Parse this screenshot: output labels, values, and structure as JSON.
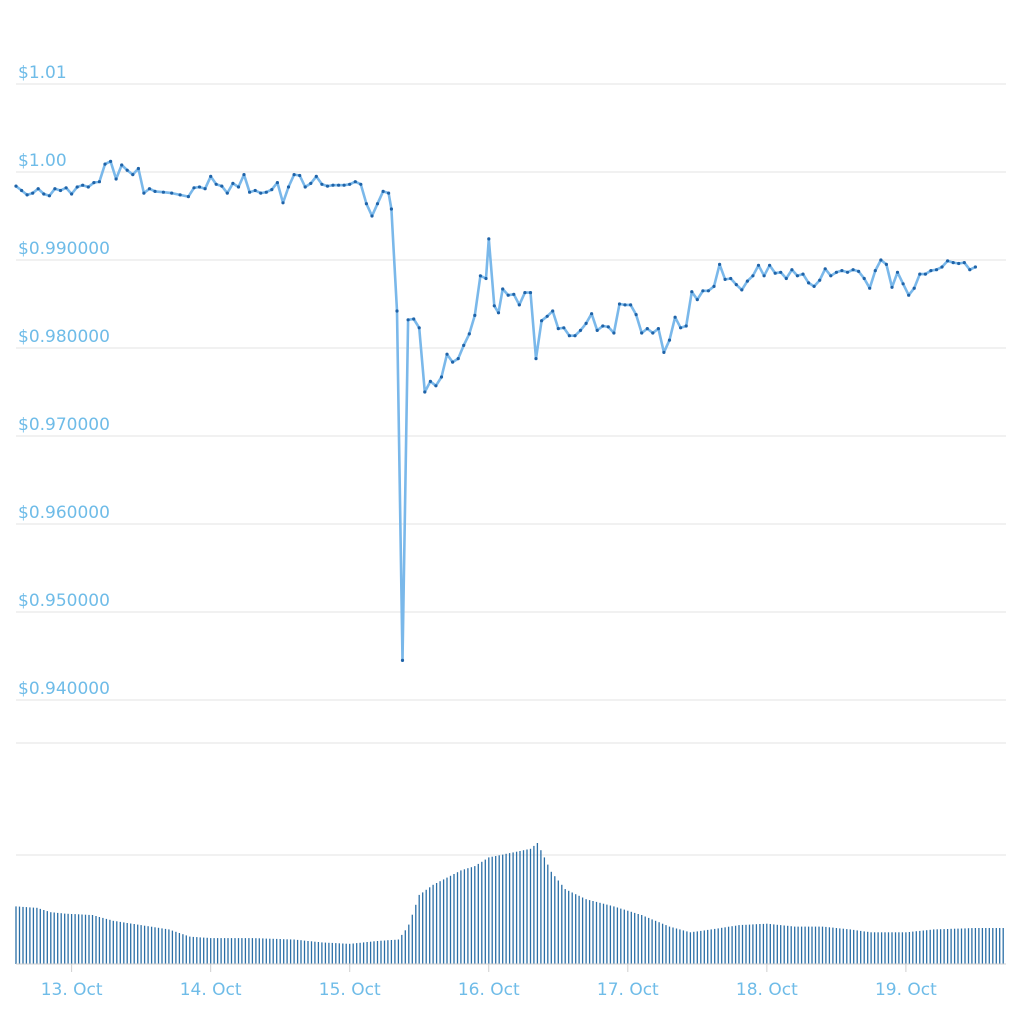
{
  "colors": {
    "line": "#7ab8ea",
    "point": "#1f63a8",
    "volume_bar": "#2a6ea6",
    "grid": "#e3e3e3",
    "axis_text": "#6fbce8",
    "axis_line": "#cfcfcf"
  },
  "chart_data": [
    {
      "type": "line",
      "name": "price",
      "title": "",
      "xlabel": "",
      "ylabel": "",
      "y_ticks": [
        {
          "value": 1.01,
          "label": "$1.01"
        },
        {
          "value": 1.0,
          "label": "$1.00"
        },
        {
          "value": 0.99,
          "label": "$0.990000"
        },
        {
          "value": 0.98,
          "label": "$0.980000"
        },
        {
          "value": 0.97,
          "label": "$0.970000"
        },
        {
          "value": 0.96,
          "label": "$0.960000"
        },
        {
          "value": 0.95,
          "label": "$0.950000"
        },
        {
          "value": 0.94,
          "label": "$0.940000"
        }
      ],
      "grid": true,
      "ylim": [
        0.935,
        1.015
      ],
      "xlim": [
        12.6,
        19.72
      ],
      "x_unit": "day of October",
      "series": [
        {
          "values": [
            [
              12.6,
              0.9984
            ],
            [
              12.64,
              0.9979
            ],
            [
              12.68,
              0.9974
            ],
            [
              12.72,
              0.9976
            ],
            [
              12.76,
              0.9981
            ],
            [
              12.8,
              0.9975
            ],
            [
              12.84,
              0.9973
            ],
            [
              12.88,
              0.9981
            ],
            [
              12.92,
              0.9979
            ],
            [
              12.96,
              0.9982
            ],
            [
              13.0,
              0.9975
            ],
            [
              13.04,
              0.9983
            ],
            [
              13.08,
              0.9985
            ],
            [
              13.12,
              0.9983
            ],
            [
              13.16,
              0.9988
            ],
            [
              13.2,
              0.9989
            ],
            [
              13.24,
              1.0009
            ],
            [
              13.28,
              1.0012
            ],
            [
              13.32,
              0.9992
            ],
            [
              13.36,
              1.0008
            ],
            [
              13.4,
              1.0002
            ],
            [
              13.44,
              0.9997
            ],
            [
              13.48,
              1.0004
            ],
            [
              13.52,
              0.9976
            ],
            [
              13.56,
              0.9981
            ],
            [
              13.6,
              0.9978
            ],
            [
              13.66,
              0.9977
            ],
            [
              13.72,
              0.9976
            ],
            [
              13.78,
              0.9974
            ],
            [
              13.84,
              0.9972
            ],
            [
              13.88,
              0.9982
            ],
            [
              13.92,
              0.9983
            ],
            [
              13.96,
              0.9981
            ],
            [
              14.0,
              0.9995
            ],
            [
              14.04,
              0.9986
            ],
            [
              14.08,
              0.9984
            ],
            [
              14.12,
              0.9976
            ],
            [
              14.16,
              0.9987
            ],
            [
              14.2,
              0.9983
            ],
            [
              14.24,
              0.9997
            ],
            [
              14.28,
              0.9977
            ],
            [
              14.32,
              0.9979
            ],
            [
              14.36,
              0.9976
            ],
            [
              14.4,
              0.9977
            ],
            [
              14.44,
              0.998
            ],
            [
              14.48,
              0.9988
            ],
            [
              14.52,
              0.9965
            ],
            [
              14.56,
              0.9983
            ],
            [
              14.6,
              0.9997
            ],
            [
              14.64,
              0.9996
            ],
            [
              14.68,
              0.9983
            ],
            [
              14.72,
              0.9987
            ],
            [
              14.76,
              0.9995
            ],
            [
              14.8,
              0.9986
            ],
            [
              14.84,
              0.9984
            ],
            [
              14.88,
              0.9985
            ],
            [
              14.92,
              0.9985
            ],
            [
              14.96,
              0.9985
            ],
            [
              15.0,
              0.9986
            ],
            [
              15.04,
              0.9989
            ],
            [
              15.08,
              0.9986
            ],
            [
              15.12,
              0.9964
            ],
            [
              15.16,
              0.995
            ],
            [
              15.2,
              0.9964
            ],
            [
              15.24,
              0.9978
            ],
            [
              15.28,
              0.9976
            ],
            [
              15.3,
              0.9958
            ],
            [
              15.34,
              0.9842
            ],
            [
              15.38,
              0.9445
            ],
            [
              15.42,
              0.9832
            ],
            [
              15.46,
              0.9833
            ],
            [
              15.5,
              0.9823
            ],
            [
              15.54,
              0.975
            ],
            [
              15.58,
              0.9762
            ],
            [
              15.62,
              0.9757
            ],
            [
              15.66,
              0.9767
            ],
            [
              15.7,
              0.9793
            ],
            [
              15.74,
              0.9784
            ],
            [
              15.78,
              0.9788
            ],
            [
              15.82,
              0.9803
            ],
            [
              15.86,
              0.9816
            ],
            [
              15.9,
              0.9837
            ],
            [
              15.94,
              0.9882
            ],
            [
              15.98,
              0.9879
            ],
            [
              16.0,
              0.9924
            ],
            [
              16.04,
              0.9848
            ],
            [
              16.07,
              0.984
            ],
            [
              16.1,
              0.9867
            ],
            [
              16.14,
              0.986
            ],
            [
              16.18,
              0.9861
            ],
            [
              16.22,
              0.9849
            ],
            [
              16.26,
              0.9863
            ],
            [
              16.3,
              0.9863
            ],
            [
              16.34,
              0.9788
            ],
            [
              16.38,
              0.9831
            ],
            [
              16.42,
              0.9836
            ],
            [
              16.46,
              0.9842
            ],
            [
              16.5,
              0.9822
            ],
            [
              16.54,
              0.9823
            ],
            [
              16.58,
              0.9814
            ],
            [
              16.62,
              0.9814
            ],
            [
              16.66,
              0.982
            ],
            [
              16.7,
              0.9828
            ],
            [
              16.74,
              0.9839
            ],
            [
              16.78,
              0.982
            ],
            [
              16.82,
              0.9825
            ],
            [
              16.86,
              0.9824
            ],
            [
              16.9,
              0.9817
            ],
            [
              16.94,
              0.985
            ],
            [
              16.98,
              0.9849
            ],
            [
              17.02,
              0.9849
            ],
            [
              17.06,
              0.9838
            ],
            [
              17.1,
              0.9817
            ],
            [
              17.14,
              0.9822
            ],
            [
              17.18,
              0.9817
            ],
            [
              17.22,
              0.9822
            ],
            [
              17.26,
              0.9795
            ],
            [
              17.3,
              0.9809
            ],
            [
              17.34,
              0.9835
            ],
            [
              17.38,
              0.9823
            ],
            [
              17.42,
              0.9825
            ],
            [
              17.46,
              0.9864
            ],
            [
              17.5,
              0.9855
            ],
            [
              17.54,
              0.9865
            ],
            [
              17.58,
              0.9865
            ],
            [
              17.62,
              0.987
            ],
            [
              17.66,
              0.9895
            ],
            [
              17.7,
              0.9878
            ],
            [
              17.74,
              0.9879
            ],
            [
              17.78,
              0.9872
            ],
            [
              17.82,
              0.9866
            ],
            [
              17.86,
              0.9876
            ],
            [
              17.9,
              0.9882
            ],
            [
              17.94,
              0.9894
            ],
            [
              17.98,
              0.9882
            ],
            [
              18.02,
              0.9894
            ],
            [
              18.06,
              0.9885
            ],
            [
              18.1,
              0.9886
            ],
            [
              18.14,
              0.9879
            ],
            [
              18.18,
              0.9889
            ],
            [
              18.22,
              0.9882
            ],
            [
              18.26,
              0.9884
            ],
            [
              18.3,
              0.9874
            ],
            [
              18.34,
              0.987
            ],
            [
              18.38,
              0.9877
            ],
            [
              18.42,
              0.989
            ],
            [
              18.46,
              0.9882
            ],
            [
              18.5,
              0.9886
            ],
            [
              18.54,
              0.9888
            ],
            [
              18.58,
              0.9886
            ],
            [
              18.62,
              0.9889
            ],
            [
              18.66,
              0.9887
            ],
            [
              18.7,
              0.9879
            ],
            [
              18.74,
              0.9868
            ],
            [
              18.78,
              0.9888
            ],
            [
              18.82,
              0.99
            ],
            [
              18.86,
              0.9895
            ],
            [
              18.9,
              0.9869
            ],
            [
              18.94,
              0.9886
            ],
            [
              18.98,
              0.9873
            ],
            [
              19.02,
              0.986
            ],
            [
              19.06,
              0.9868
            ],
            [
              19.1,
              0.9884
            ],
            [
              19.14,
              0.9884
            ],
            [
              19.18,
              0.9888
            ],
            [
              19.22,
              0.9889
            ],
            [
              19.26,
              0.9892
            ],
            [
              19.3,
              0.9899
            ],
            [
              19.34,
              0.9897
            ],
            [
              19.38,
              0.9896
            ],
            [
              19.42,
              0.9897
            ],
            [
              19.46,
              0.9889
            ],
            [
              19.5,
              0.9892
            ]
          ]
        }
      ]
    },
    {
      "type": "bar",
      "name": "volume",
      "title": "",
      "xlabel": "",
      "ylabel": "",
      "grid": true,
      "ylim": [
        0,
        100
      ],
      "x_ticks": [
        {
          "value": 13,
          "label": "13. Oct"
        },
        {
          "value": 14,
          "label": "14. Oct"
        },
        {
          "value": 15,
          "label": "15. Oct"
        },
        {
          "value": 16,
          "label": "16. Oct"
        },
        {
          "value": 17,
          "label": "17. Oct"
        },
        {
          "value": 18,
          "label": "18. Oct"
        },
        {
          "value": 19,
          "label": "19. Oct"
        }
      ],
      "bar_step": 0.025,
      "profile": [
        [
          12.6,
          40
        ],
        [
          12.75,
          39
        ],
        [
          12.85,
          36
        ],
        [
          12.95,
          35
        ],
        [
          13.15,
          34
        ],
        [
          13.3,
          30
        ],
        [
          13.5,
          27
        ],
        [
          13.7,
          24
        ],
        [
          13.85,
          19
        ],
        [
          14.0,
          18
        ],
        [
          14.3,
          18
        ],
        [
          14.6,
          17
        ],
        [
          14.8,
          15
        ],
        [
          15.0,
          14
        ],
        [
          15.2,
          16
        ],
        [
          15.35,
          17
        ],
        [
          15.42,
          26
        ],
        [
          15.5,
          48
        ],
        [
          15.6,
          55
        ],
        [
          15.7,
          60
        ],
        [
          15.8,
          65
        ],
        [
          15.9,
          68
        ],
        [
          16.0,
          74
        ],
        [
          16.1,
          76
        ],
        [
          16.2,
          78
        ],
        [
          16.3,
          80
        ],
        [
          16.35,
          84
        ],
        [
          16.45,
          64
        ],
        [
          16.55,
          52
        ],
        [
          16.7,
          45
        ],
        [
          16.9,
          40
        ],
        [
          17.1,
          34
        ],
        [
          17.3,
          26
        ],
        [
          17.45,
          22
        ],
        [
          17.6,
          24
        ],
        [
          17.8,
          27
        ],
        [
          18.0,
          28
        ],
        [
          18.2,
          26
        ],
        [
          18.4,
          26
        ],
        [
          18.6,
          24
        ],
        [
          18.75,
          22
        ],
        [
          19.0,
          22
        ],
        [
          19.2,
          24
        ],
        [
          19.5,
          25
        ],
        [
          19.72,
          25
        ]
      ]
    }
  ]
}
